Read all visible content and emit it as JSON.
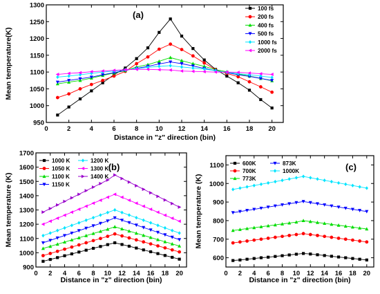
{
  "chart_data": [
    {
      "type": "line",
      "panel_label": "(a)",
      "xlabel": "Distance in \"z\" direction (bin)",
      "ylabel": "Mean temperature(K)",
      "xlim": [
        0,
        21
      ],
      "ylim": [
        950,
        1300
      ],
      "xticks": [
        0,
        2,
        4,
        6,
        8,
        10,
        12,
        14,
        16,
        18,
        20
      ],
      "yticks": [
        950,
        1000,
        1050,
        1100,
        1150,
        1200,
        1250,
        1300
      ],
      "legend_position": "top-right",
      "x": [
        1,
        2,
        3,
        4,
        5,
        6,
        7,
        8,
        9,
        10,
        11,
        12,
        13,
        14,
        15,
        16,
        17,
        18,
        19,
        20
      ],
      "series": [
        {
          "name": "100 fs",
          "color": "#000000",
          "marker": "square",
          "values": [
            972,
            996,
            1020,
            1044,
            1068,
            1092,
            1112,
            1140,
            1172,
            1218,
            1258,
            1207,
            1170,
            1136,
            1108,
            1088,
            1068,
            1046,
            1018,
            993
          ]
        },
        {
          "name": "200 fs",
          "color": "#ff0000",
          "marker": "circle",
          "values": [
            1024,
            1035,
            1050,
            1063,
            1075,
            1088,
            1102,
            1125,
            1145,
            1168,
            1183,
            1167,
            1148,
            1127,
            1107,
            1096,
            1086,
            1071,
            1056,
            1040
          ]
        },
        {
          "name": "400 fs",
          "color": "#00dd00",
          "marker": "triangle-up",
          "values": [
            1065,
            1070,
            1075,
            1082,
            1090,
            1097,
            1104,
            1115,
            1122,
            1132,
            1143,
            1134,
            1125,
            1117,
            1107,
            1101,
            1094,
            1088,
            1081,
            1074
          ]
        },
        {
          "name": "500 fs",
          "color": "#0000ff",
          "marker": "triangle-down",
          "values": [
            1070,
            1075,
            1080,
            1085,
            1092,
            1098,
            1105,
            1111,
            1117,
            1124,
            1130,
            1125,
            1118,
            1111,
            1104,
            1098,
            1092,
            1087,
            1081,
            1075
          ]
        },
        {
          "name": "1000 fs",
          "color": "#00e5ff",
          "marker": "diamond",
          "values": [
            1085,
            1088,
            1092,
            1096,
            1100,
            1103,
            1107,
            1110,
            1114,
            1117,
            1119,
            1115,
            1112,
            1109,
            1104,
            1099,
            1095,
            1092,
            1088,
            1084
          ]
        },
        {
          "name": "2000 fs",
          "color": "#ff00ff",
          "marker": "triangle-left",
          "values": [
            1093,
            1096,
            1098,
            1101,
            1103,
            1105,
            1107,
            1108,
            1108,
            1107,
            1106,
            1103,
            1102,
            1101,
            1100,
            1100,
            1099,
            1097,
            1095,
            1093
          ]
        }
      ]
    },
    {
      "type": "line",
      "panel_label": "(b)",
      "xlabel": "Distance in \"z\" direction (bin)",
      "ylabel": "Mean temperature (K)",
      "xlim": [
        0,
        21
      ],
      "ylim": [
        900,
        1700
      ],
      "xticks": [
        0,
        2,
        4,
        6,
        8,
        10,
        12,
        14,
        16,
        18,
        20
      ],
      "yticks": [
        900,
        1000,
        1100,
        1200,
        1300,
        1400,
        1500,
        1600,
        1700
      ],
      "legend_position": "top-left",
      "x": [
        1,
        2,
        3,
        4,
        5,
        6,
        7,
        8,
        9,
        10,
        11,
        12,
        13,
        14,
        15,
        16,
        17,
        18,
        19,
        20
      ],
      "series": [
        {
          "name": "1000 K",
          "color": "#000000",
          "marker": "square",
          "values": [
            940,
            953,
            966,
            979,
            992,
            1005,
            1018,
            1031,
            1044,
            1057,
            1070,
            1058,
            1046,
            1033,
            1020,
            1007,
            994,
            981,
            968,
            955
          ]
        },
        {
          "name": "1050 K",
          "color": "#ff0000",
          "marker": "circle",
          "values": [
            980,
            995,
            1010,
            1025,
            1040,
            1055,
            1070,
            1085,
            1100,
            1115,
            1132,
            1118,
            1104,
            1090,
            1076,
            1062,
            1048,
            1034,
            1020,
            1006
          ]
        },
        {
          "name": "1100 K",
          "color": "#00dd00",
          "marker": "triangle-up",
          "values": [
            1030,
            1045,
            1060,
            1075,
            1090,
            1105,
            1120,
            1135,
            1150,
            1165,
            1182,
            1167,
            1152,
            1137,
            1122,
            1107,
            1092,
            1077,
            1062,
            1047
          ]
        },
        {
          "name": "1150 K",
          "color": "#0000ff",
          "marker": "triangle-down",
          "values": [
            1070,
            1087,
            1104,
            1121,
            1138,
            1155,
            1172,
            1189,
            1206,
            1223,
            1245,
            1228,
            1211,
            1194,
            1177,
            1160,
            1143,
            1126,
            1109,
            1092
          ]
        },
        {
          "name": "1200 K",
          "color": "#00e5ff",
          "marker": "diamond",
          "values": [
            1120,
            1138,
            1156,
            1174,
            1192,
            1210,
            1228,
            1246,
            1264,
            1282,
            1300,
            1282,
            1264,
            1246,
            1228,
            1210,
            1192,
            1174,
            1156,
            1138
          ]
        },
        {
          "name": "1300 K",
          "color": "#ff00ff",
          "marker": "triangle-left",
          "values": [
            1200,
            1221,
            1242,
            1263,
            1284,
            1305,
            1326,
            1347,
            1368,
            1389,
            1410,
            1389,
            1368,
            1347,
            1326,
            1305,
            1284,
            1263,
            1242,
            1221
          ]
        },
        {
          "name": "1400 K",
          "color": "#9900cc",
          "marker": "triangle-right",
          "values": [
            1285,
            1310,
            1335,
            1360,
            1385,
            1410,
            1435,
            1460,
            1485,
            1510,
            1545,
            1520,
            1495,
            1470,
            1445,
            1420,
            1395,
            1370,
            1345,
            1320
          ]
        }
      ]
    },
    {
      "type": "line",
      "panel_label": "(c)",
      "xlabel": "Distance in \"z\" direction (bin)",
      "ylabel": "Mean temperature (K)",
      "xlim": [
        0,
        21
      ],
      "ylim": [
        550,
        1150
      ],
      "xticks": [
        0,
        2,
        4,
        6,
        8,
        10,
        12,
        14,
        16,
        18,
        20
      ],
      "yticks": [
        600,
        700,
        800,
        900,
        1000,
        1100
      ],
      "legend_position": "top-left",
      "x": [
        1,
        2,
        3,
        4,
        5,
        6,
        7,
        8,
        9,
        10,
        11,
        12,
        13,
        14,
        15,
        16,
        17,
        18,
        19,
        20
      ],
      "series": [
        {
          "name": "600K",
          "color": "#000000",
          "marker": "square",
          "values": [
            585,
            588,
            592,
            596,
            600,
            603,
            607,
            611,
            615,
            619,
            623,
            620,
            616,
            612,
            608,
            604,
            600,
            596,
            592,
            588
          ]
        },
        {
          "name": "700K",
          "color": "#ff0000",
          "marker": "circle",
          "values": [
            680,
            685,
            690,
            695,
            700,
            705,
            710,
            715,
            720,
            725,
            730,
            725,
            720,
            715,
            710,
            705,
            700,
            695,
            690,
            685
          ]
        },
        {
          "name": "773K",
          "color": "#00dd00",
          "marker": "triangle-up",
          "values": [
            747,
            752,
            757,
            762,
            767,
            772,
            777,
            782,
            787,
            792,
            800,
            795,
            790,
            785,
            780,
            775,
            770,
            765,
            760,
            755
          ]
        },
        {
          "name": "873K",
          "color": "#0000ff",
          "marker": "triangle-down",
          "values": [
            843,
            849,
            855,
            861,
            867,
            873,
            879,
            885,
            891,
            897,
            903,
            897,
            891,
            885,
            879,
            873,
            867,
            861,
            855,
            849
          ]
        },
        {
          "name": "1000K",
          "color": "#00e5ff",
          "marker": "diamond",
          "values": [
            968,
            975,
            982,
            989,
            996,
            1003,
            1010,
            1017,
            1024,
            1031,
            1038,
            1031,
            1024,
            1017,
            1010,
            1003,
            996,
            989,
            982,
            975
          ]
        }
      ]
    }
  ]
}
